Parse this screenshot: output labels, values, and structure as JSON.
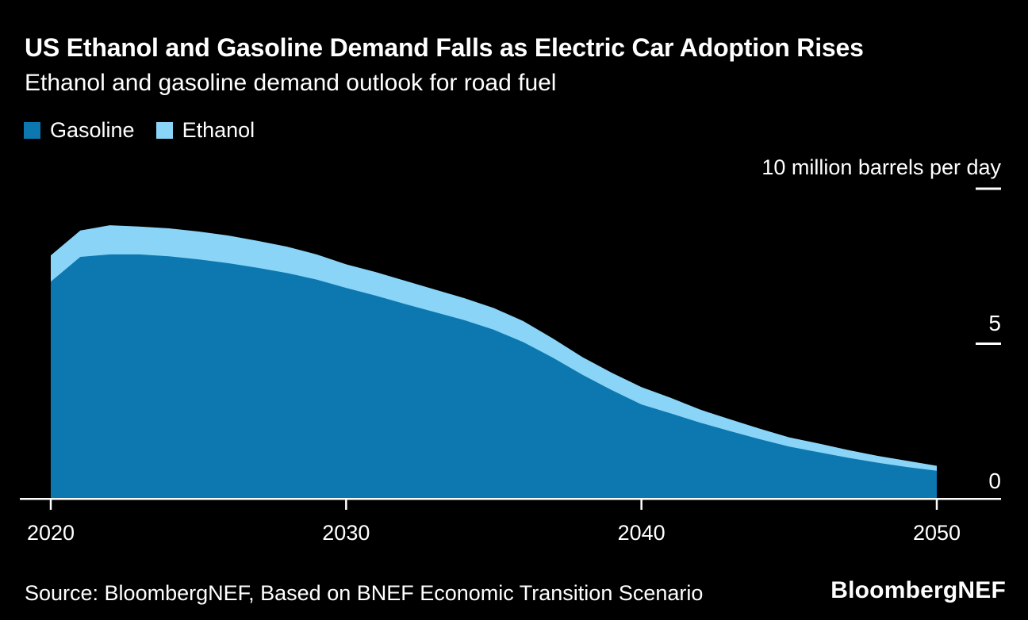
{
  "header": {
    "title": "US Ethanol and Gasoline Demand Falls as Electric Car Adoption Rises",
    "subtitle": "Ethanol and gasoline demand outlook for road fuel"
  },
  "legend": {
    "items": [
      {
        "label": "Gasoline",
        "color": "#0d78b0"
      },
      {
        "label": "Ethanol",
        "color": "#8ad5f7"
      }
    ]
  },
  "chart_data": {
    "type": "area",
    "stacked": true,
    "title": "US Ethanol and Gasoline Demand Falls as Electric Car Adoption Rises",
    "subtitle": "Ethanol and gasoline demand outlook for road fuel",
    "unit_label": "10 million barrels per day",
    "background": "#000000",
    "axis_color": "#ffffff",
    "xlim": [
      2020,
      2050
    ],
    "ylim": [
      0,
      10
    ],
    "grid": false,
    "legend_position": "top-left",
    "x": [
      2020,
      2021,
      2022,
      2023,
      2024,
      2025,
      2026,
      2027,
      2028,
      2029,
      2030,
      2031,
      2032,
      2033,
      2034,
      2035,
      2036,
      2037,
      2038,
      2039,
      2040,
      2041,
      2042,
      2043,
      2044,
      2045,
      2046,
      2047,
      2048,
      2049,
      2050
    ],
    "series": [
      {
        "name": "Gasoline",
        "color": "#0d78b0",
        "values": [
          7.0,
          7.8,
          7.88,
          7.88,
          7.82,
          7.72,
          7.6,
          7.45,
          7.28,
          7.07,
          6.8,
          6.55,
          6.28,
          6.02,
          5.76,
          5.45,
          5.05,
          4.55,
          4.0,
          3.5,
          3.04,
          2.75,
          2.45,
          2.18,
          1.92,
          1.68,
          1.5,
          1.32,
          1.16,
          1.02,
          0.9
        ]
      },
      {
        "name": "Ethanol",
        "color": "#8ad5f7",
        "values": [
          0.85,
          0.85,
          0.94,
          0.9,
          0.9,
          0.9,
          0.89,
          0.87,
          0.85,
          0.81,
          0.76,
          0.76,
          0.75,
          0.73,
          0.71,
          0.7,
          0.68,
          0.62,
          0.57,
          0.56,
          0.56,
          0.5,
          0.42,
          0.38,
          0.34,
          0.3,
          0.28,
          0.25,
          0.22,
          0.2,
          0.16
        ]
      }
    ],
    "x_ticks": [
      2020,
      2030,
      2040,
      2050
    ],
    "x_tick_labels": [
      "2020",
      "2030",
      "2040",
      "2050"
    ],
    "y_ticks": [
      0,
      5,
      10
    ],
    "y_tick_labels": [
      "0",
      "5"
    ]
  },
  "footer": {
    "source": "Source: BloombergNEF, Based on BNEF Economic Transition Scenario",
    "logo": "BloombergNEF"
  }
}
